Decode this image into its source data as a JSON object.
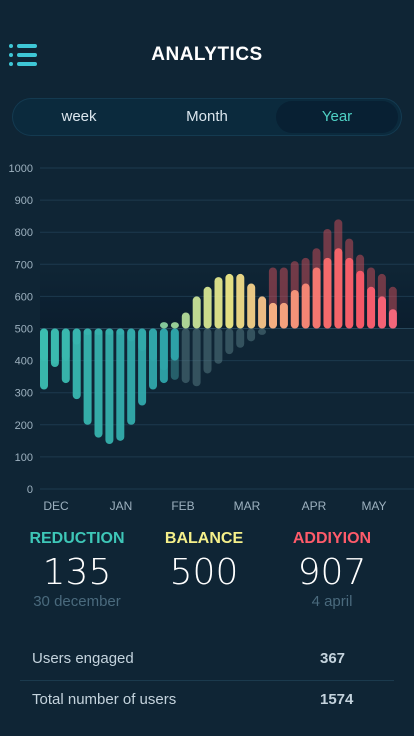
{
  "header": {
    "title": "ANALYTICS",
    "menu_icon": "list-menu-icon"
  },
  "tabs": [
    {
      "label": "week",
      "active": false
    },
    {
      "label": "Month",
      "active": false
    },
    {
      "label": "Year",
      "active": true
    }
  ],
  "colors": {
    "background": "#0f2535",
    "accent": "#4fd1c5",
    "reduction": "#3ec7b8",
    "balance": "#f5f08a",
    "addition": "#ff5b6a"
  },
  "chart_data": {
    "type": "bar",
    "y_ticks": [
      "1000",
      "900",
      "800",
      "700",
      "600",
      "500",
      "400",
      "300",
      "200",
      "100",
      "0"
    ],
    "ylim": [
      0,
      1000
    ],
    "baseline": 500,
    "x_ticks": [
      "DEC",
      "JAN",
      "FEB",
      "MAR",
      "APR",
      "MAY"
    ],
    "grid": true,
    "series": [
      {
        "values": [
          310,
          380,
          330,
          280,
          200,
          160,
          140,
          150,
          200,
          260,
          310,
          330,
          400
        ]
      },
      {
        "values": [
          520,
          520,
          550,
          600,
          630,
          660,
          670,
          670,
          640,
          600,
          580,
          580,
          620,
          640,
          690,
          720,
          750,
          720,
          680,
          630,
          600,
          560
        ]
      },
      {
        "values": [
          400,
          390,
          400,
          450,
          480,
          480,
          480,
          480,
          460,
          430,
          400,
          370,
          340,
          330,
          320,
          360,
          390,
          420,
          440,
          460,
          480,
          690,
          690,
          710,
          720,
          750,
          810,
          840,
          780,
          730,
          690,
          670,
          630
        ]
      }
    ]
  },
  "stats": {
    "reduction": {
      "label": "REDUCTION",
      "value": "135",
      "date": "30 december"
    },
    "balance": {
      "label": "BALANCE",
      "value": "500"
    },
    "addition": {
      "label": "ADDIYION",
      "value": "907",
      "date": "4 april"
    }
  },
  "rows": [
    {
      "label": "Users engaged",
      "value": "367"
    },
    {
      "label": "Total number of users",
      "value": "1574"
    }
  ]
}
